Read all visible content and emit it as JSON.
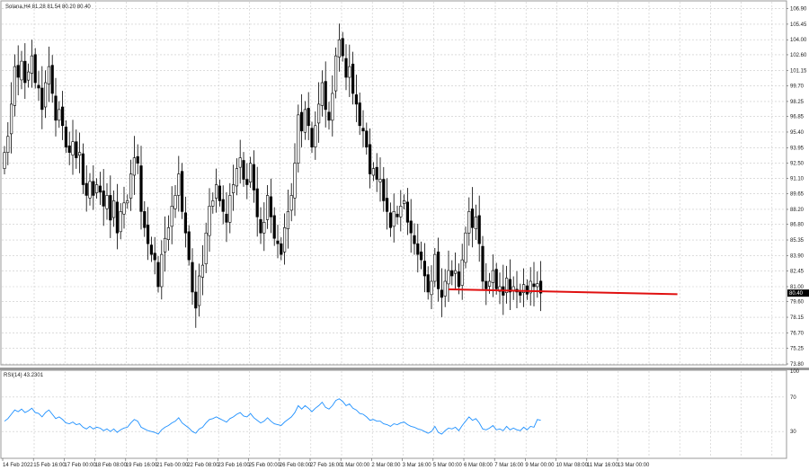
{
  "colors": {
    "background": "#ffffff",
    "grid": "#c8c8c8",
    "frame": "#9a9a9a",
    "bull_fill": "#ffffff",
    "bear_fill": "#000000",
    "wick": "#000000",
    "support_line": "#e01010",
    "rsi_line": "#1e90ff",
    "price_label_bg": "#000000",
    "price_label_text": "#ffffff"
  },
  "chart_data": [
    {
      "type": "candlestick",
      "header": "Solana,H4  81.28 81.54 80.20 80.40",
      "symbol": "Solana,H4",
      "ohlc_header": "81.28 81.54 80.20 80.40",
      "current_price_label": "80.40",
      "ylim": [
        73.8,
        107.2
      ],
      "y_ticks": [
        "106.90",
        "105.45",
        "104.00",
        "102.60",
        "101.15",
        "99.70",
        "98.25",
        "96.85",
        "95.40",
        "93.95",
        "92.50",
        "91.10",
        "89.65",
        "88.20",
        "86.80",
        "85.35",
        "83.90",
        "82.45",
        "81.00",
        "79.60",
        "78.15",
        "76.70",
        "75.25",
        "73.80"
      ],
      "x_ticks": [
        "14 Feb 2022",
        "15 Feb 16:00",
        "17 Feb 00:00",
        "18 Feb 08:00",
        "19 Feb 16:00",
        "21 Feb 00:00",
        "22 Feb 08:00",
        "23 Feb 16:00",
        "25 Feb 00:00",
        "26 Feb 08:00",
        "27 Feb 16:00",
        "1 Mar 00:00",
        "2 Mar 08:00",
        "3 Mar 16:00",
        "5 Mar 00:00",
        "6 Mar 08:00",
        "7 Mar 16:00",
        "9 Mar 00:00",
        "10 Mar 08:00",
        "11 Mar 16:00",
        "13 Mar 00:00"
      ],
      "support_line": {
        "start_candle": 130,
        "end_candle": 197,
        "start_value": 80.75,
        "end_value": 80.3
      },
      "closes": [
        93.5,
        95.0,
        98.0,
        101.5,
        100.5,
        102.0,
        100.0,
        101.0,
        102.5,
        100.0,
        99.5,
        97.5,
        100.0,
        101.5,
        99.0,
        96.5,
        97.5,
        96.0,
        94.0,
        93.5,
        94.5,
        93.0,
        93.5,
        90.5,
        89.5,
        90.8,
        89.5,
        90.5,
        89.8,
        88.5,
        89.5,
        87.2,
        89.0,
        86.0,
        88.0,
        88.8,
        89.0,
        91.5,
        93.0,
        92.5,
        88.0,
        86.5,
        85.0,
        84.0,
        83.5,
        81.0,
        84.0,
        85.5,
        86.5,
        88.5,
        89.5,
        91.5,
        88.0,
        86.0,
        83.5,
        80.5,
        79.0,
        82.0,
        83.0,
        86.0,
        88.5,
        89.0,
        90.5,
        89.0,
        88.0,
        87.0,
        89.5,
        90.5,
        92.0,
        93.0,
        91.0,
        90.5,
        92.5,
        90.0,
        87.5,
        86.0,
        87.0,
        89.5,
        87.5,
        85.5,
        85.0,
        84.0,
        86.5,
        88.0,
        89.5,
        92.5,
        97.0,
        95.5,
        97.5,
        96.0,
        94.0,
        96.0,
        98.0,
        100.0,
        97.5,
        96.5,
        99.0,
        102.5,
        104.0,
        102.5,
        100.5,
        101.5,
        99.0,
        98.0,
        96.0,
        95.5,
        94.0,
        91.5,
        92.0,
        91.0,
        91.0,
        89.0,
        88.0,
        86.5,
        88.0,
        87.5,
        88.5,
        89.0,
        87.0,
        86.0,
        85.0,
        84.0,
        83.5,
        82.0,
        80.5,
        81.5,
        84.0,
        80.8,
        80.0,
        81.5,
        82.5,
        82.0,
        82.5,
        81.0,
        83.5,
        86.0,
        88.0,
        86.5,
        87.5,
        85.0,
        81.5,
        80.8,
        81.5,
        82.5,
        80.8,
        81.0,
        80.2,
        81.8,
        80.5,
        81.0,
        80.5,
        80.2,
        81.2,
        80.3,
        81.5,
        81.0,
        81.28,
        80.4
      ],
      "rsi": {
        "label": "RSI(14) 43.2301",
        "ylim": [
          0,
          100
        ],
        "ticks": [
          "100",
          "70",
          "30",
          "0"
        ],
        "values": [
          42,
          45,
          50,
          55,
          53,
          56,
          52,
          54,
          57,
          52,
          51,
          47,
          52,
          55,
          50,
          45,
          47,
          44,
          40,
          39,
          41,
          38,
          39,
          35,
          33,
          36,
          33,
          35,
          34,
          31,
          33,
          30,
          33,
          29,
          32,
          34,
          35,
          40,
          44,
          42,
          35,
          33,
          31,
          30,
          29,
          27,
          32,
          35,
          37,
          40,
          42,
          46,
          40,
          37,
          34,
          30,
          28,
          33,
          35,
          40,
          44,
          45,
          47,
          45,
          43,
          41,
          45,
          47,
          50,
          52,
          48,
          47,
          51,
          46,
          43,
          40,
          42,
          46,
          42,
          39,
          38,
          37,
          41,
          44,
          47,
          52,
          60,
          56,
          60,
          57,
          53,
          57,
          60,
          64,
          58,
          56,
          60,
          66,
          68,
          65,
          60,
          62,
          57,
          55,
          51,
          50,
          47,
          43,
          44,
          42,
          42,
          39,
          38,
          36,
          39,
          38,
          40,
          41,
          38,
          36,
          35,
          33,
          32,
          30,
          28,
          30,
          36,
          29,
          27,
          31,
          34,
          33,
          35,
          31,
          37,
          42,
          47,
          43,
          45,
          40,
          33,
          32,
          34,
          37,
          32,
          33,
          31,
          36,
          32,
          34,
          32,
          31,
          35,
          32,
          36,
          35,
          44,
          43
        ]
      }
    }
  ]
}
